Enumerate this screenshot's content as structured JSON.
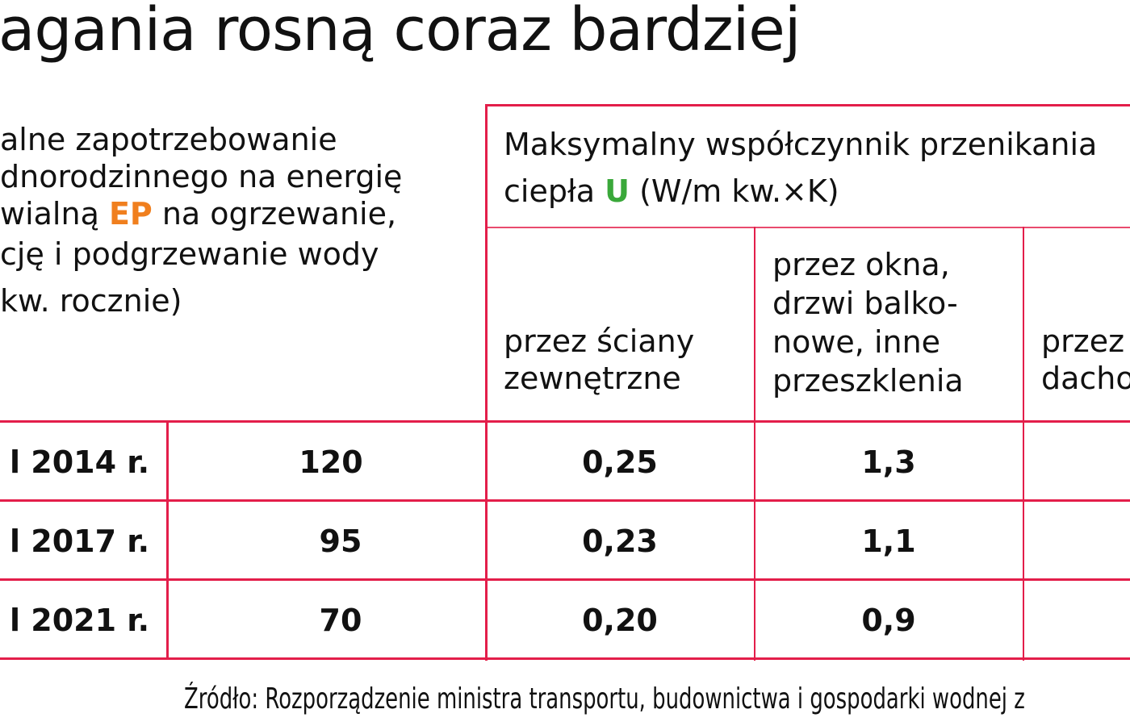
{
  "title": "agania rosną coraz bardziej",
  "left_header": {
    "lines": [
      "alne zapotrzebowanie",
      "dnorodzinnego na energię",
      "wialną ",
      " na ogrzewanie,",
      "cję i podgrzewanie wody",
      "kw. rocznie)"
    ],
    "ep": "EP"
  },
  "right_header": {
    "line1": "Maksymalny współczynnik przenikania",
    "line2_pre": "ciepła ",
    "u": "U",
    "line2_post": " (W/m kw.×K)",
    "sub": [
      [
        "przez ściany",
        "zewnętrzne"
      ],
      [
        "przez okna,",
        "drzwi balko-",
        "nowe, inne",
        "przeszklenia"
      ],
      [
        "przez",
        "dacho"
      ]
    ]
  },
  "rows": [
    {
      "label": "l 2014 r.",
      "ep": "120",
      "walls": "0,25",
      "windows": "1,3"
    },
    {
      "label": "l 2017 r.",
      "ep": "95",
      "walls": "0,23",
      "windows": "1,1"
    },
    {
      "label": "l 2021 r.",
      "ep": "70",
      "walls": "0,20",
      "windows": "0,9"
    }
  ],
  "source": "Źródło: Rozporządzenie ministra transportu, budownictwa i gospodarki wodnej z",
  "colors": {
    "border": "#e31e4a",
    "ep": "#f07f1e",
    "u": "#3aa83a"
  }
}
